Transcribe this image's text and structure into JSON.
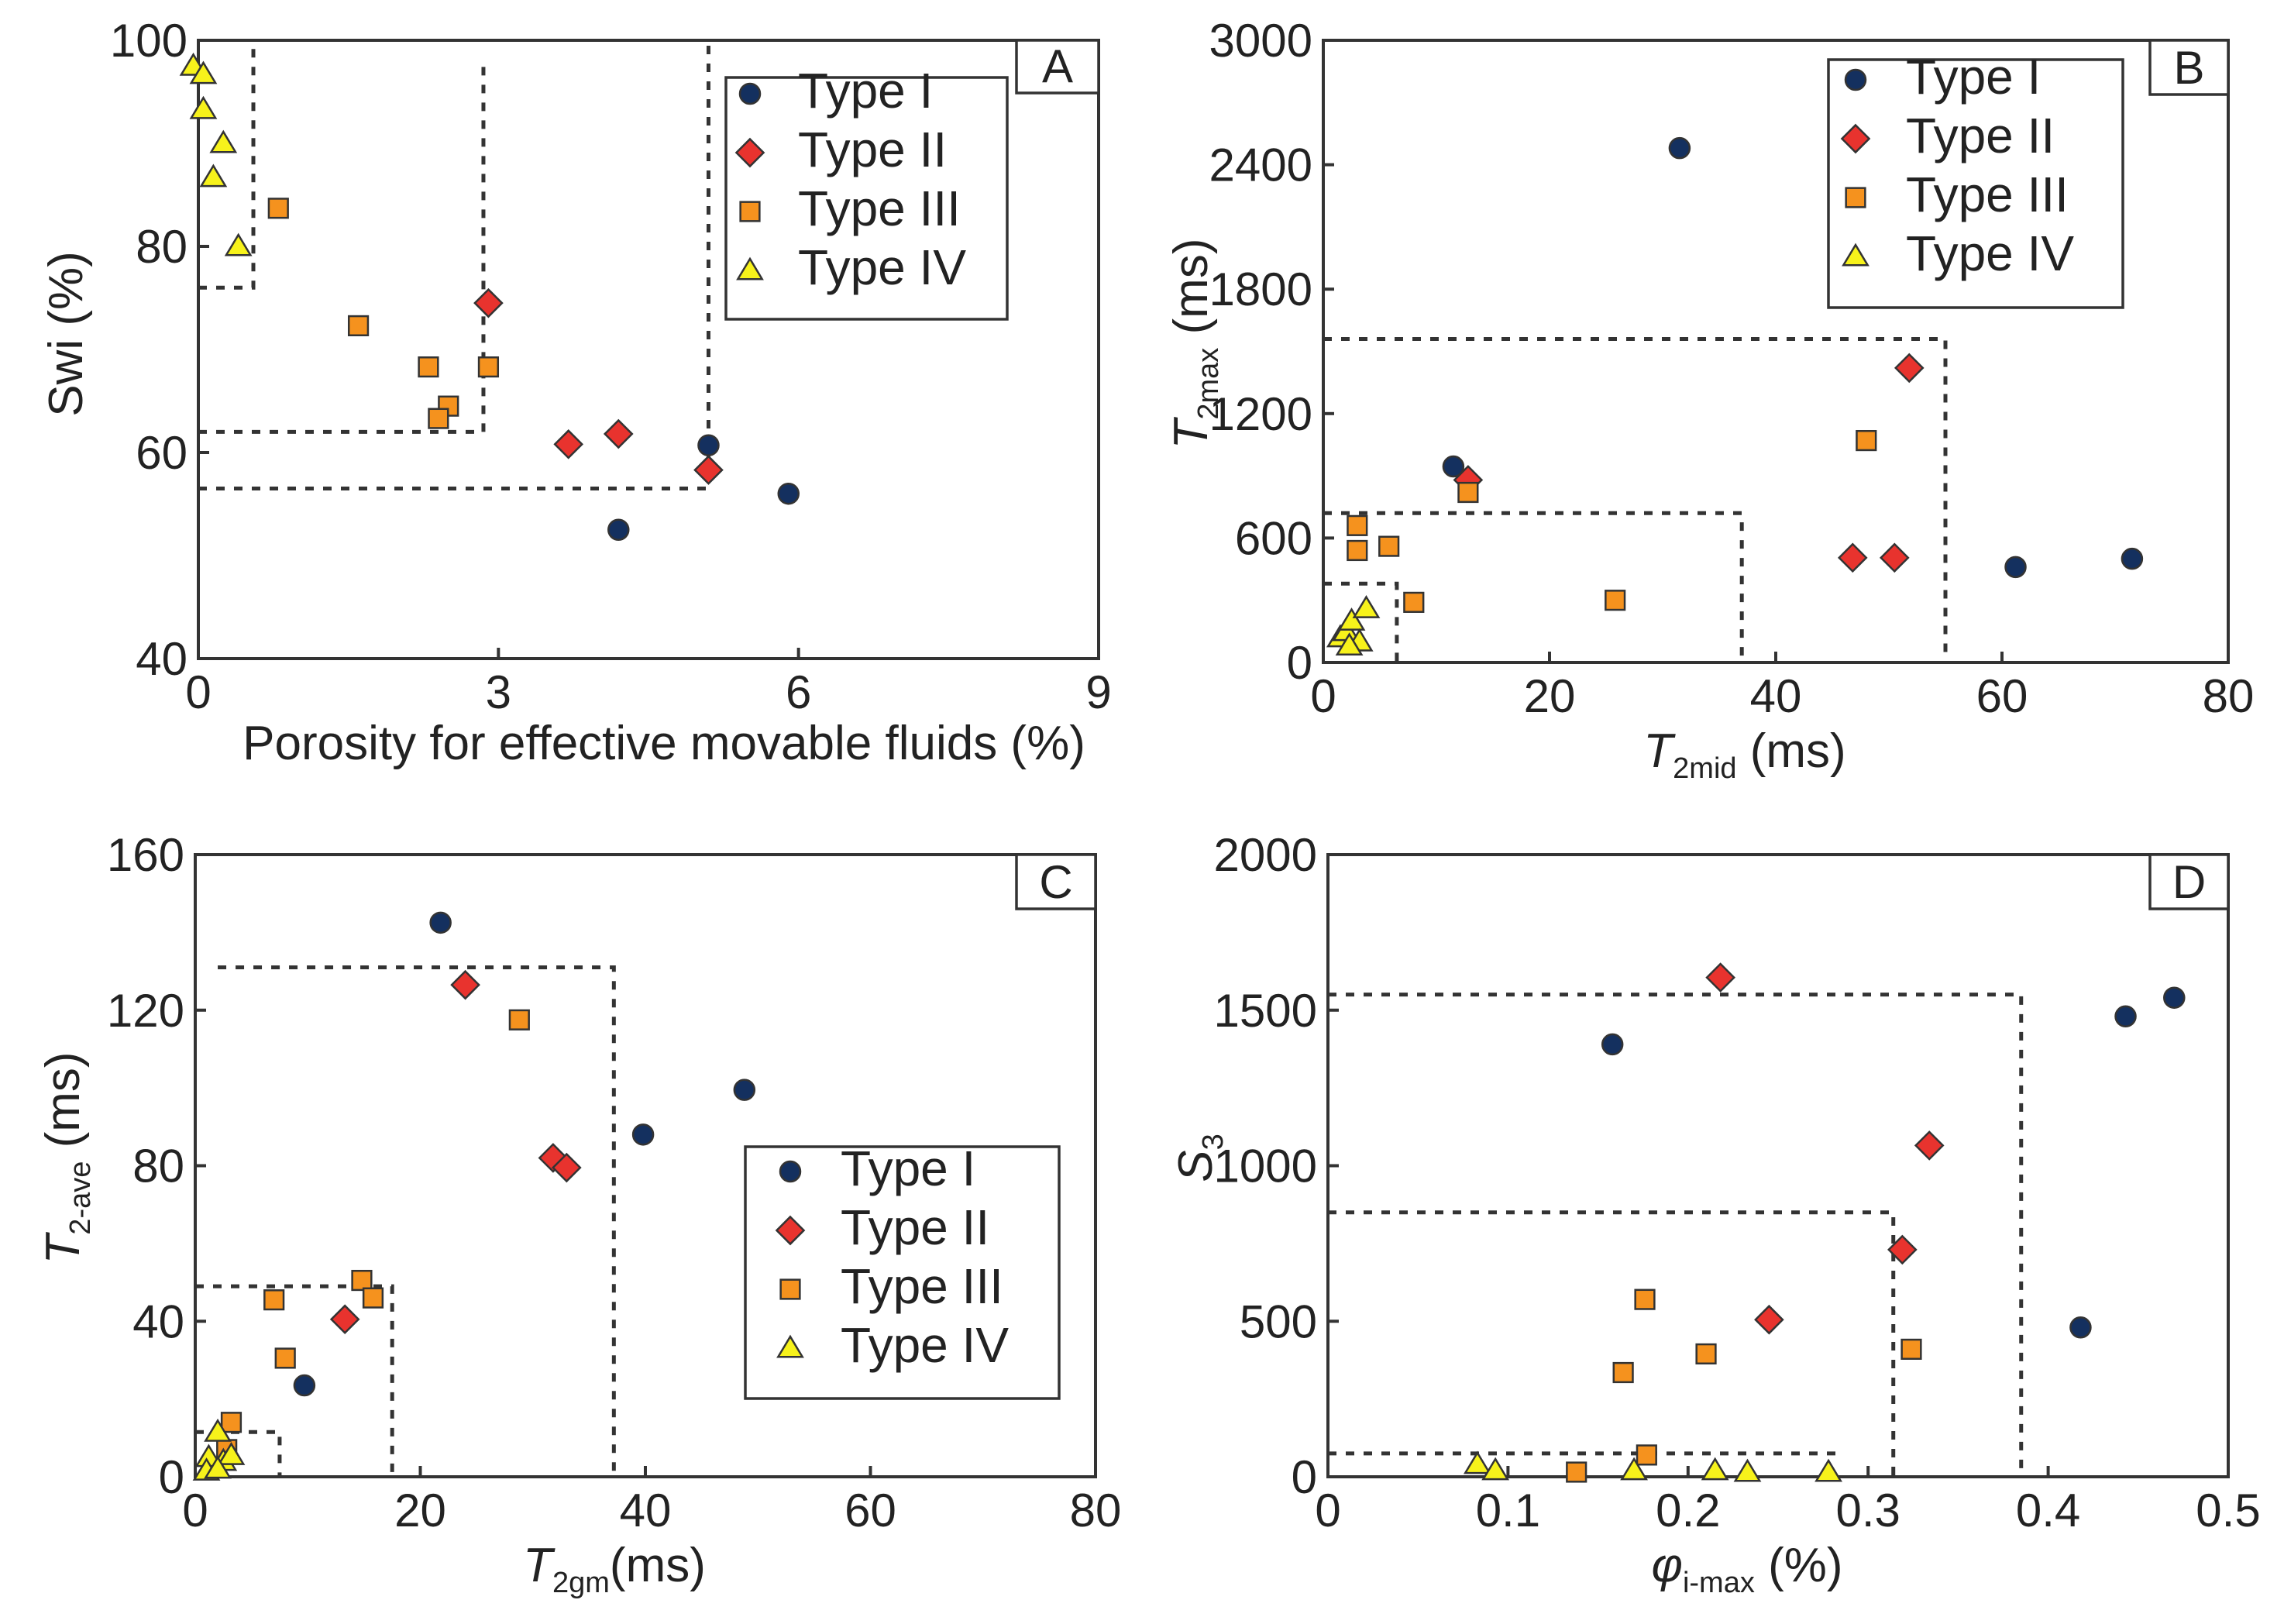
{
  "series_styles": [
    {
      "name": "Type I",
      "marker": "circle",
      "color": "#14305f"
    },
    {
      "name": "Type II",
      "marker": "diamond",
      "color": "#e8332e"
    },
    {
      "name": "Type III",
      "marker": "square",
      "color": "#f5921e"
    },
    {
      "name": "Type IV",
      "marker": "triangle",
      "color": "#f7f21b"
    }
  ],
  "chart_data": [
    {
      "type": "scatter",
      "panel_label": "A",
      "xlabel": "Porosity for effective movable fluids  (%)",
      "ylabel": "Swi (%)",
      "xlim": [
        0,
        9
      ],
      "ylim": [
        40,
        100
      ],
      "xticks": [
        0,
        3,
        6,
        9
      ],
      "yticks": [
        40,
        60,
        80,
        100
      ],
      "legend_position": "top-right",
      "series": [
        {
          "name": "Type I",
          "points": [
            [
              4.2,
              52.5
            ],
            [
              5.1,
              60.7
            ],
            [
              5.9,
              56.0
            ]
          ]
        },
        {
          "name": "Type II",
          "points": [
            [
              2.9,
              74.5
            ],
            [
              3.7,
              60.8
            ],
            [
              4.2,
              61.8
            ],
            [
              5.1,
              58.3
            ]
          ]
        },
        {
          "name": "Type III",
          "points": [
            [
              0.8,
              83.7
            ],
            [
              1.6,
              72.3
            ],
            [
              2.3,
              68.3
            ],
            [
              2.5,
              64.5
            ],
            [
              2.4,
              63.3
            ],
            [
              2.9,
              68.3
            ]
          ]
        },
        {
          "name": "Type IV",
          "points": [
            [
              -0.05,
              97.5
            ],
            [
              0.05,
              96.7
            ],
            [
              0.05,
              93.3
            ],
            [
              0.25,
              90.0
            ],
            [
              0.15,
              86.7
            ],
            [
              0.4,
              80.0
            ]
          ]
        }
      ],
      "boundaries": [
        [
          [
            0,
            76
          ],
          [
            0.55,
            76
          ],
          [
            0.55,
            100
          ]
        ],
        [
          [
            0,
            62
          ],
          [
            2.85,
            62
          ],
          [
            2.85,
            97.5
          ]
        ],
        [
          [
            0,
            56.5
          ],
          [
            5.1,
            56.5
          ],
          [
            5.1,
            100
          ]
        ]
      ]
    },
    {
      "type": "scatter",
      "panel_label": "B",
      "xlabel": "T2mid (ms)",
      "xlabel_main": "T",
      "xlabel_sub": "2mid",
      "xlabel_unit": " (ms)",
      "ylabel": "T2max (ms)",
      "ylabel_main": "T",
      "ylabel_sub": "2max",
      "ylabel_unit": " (ms)",
      "xlim": [
        0,
        80
      ],
      "ylim": [
        0,
        3000
      ],
      "xticks": [
        0,
        20,
        40,
        60,
        80
      ],
      "yticks": [
        0,
        600,
        1200,
        1800,
        2400,
        3000
      ],
      "legend_position": "top-right",
      "series": [
        {
          "name": "Type I",
          "points": [
            [
              31.5,
              2480
            ],
            [
              11.5,
              945
            ],
            [
              61.2,
              460
            ],
            [
              71.5,
              500
            ]
          ]
        },
        {
          "name": "Type II",
          "points": [
            [
              12.8,
              880
            ],
            [
              51.8,
              1420
            ],
            [
              46.8,
              505
            ],
            [
              50.5,
              505
            ]
          ]
        },
        {
          "name": "Type III",
          "points": [
            [
              12.8,
              820
            ],
            [
              3.0,
              660
            ],
            [
              3.0,
              540
            ],
            [
              5.8,
              560
            ],
            [
              8.0,
              290
            ],
            [
              25.8,
              300
            ],
            [
              48.0,
              1070
            ]
          ]
        },
        {
          "name": "Type IV",
          "points": [
            [
              1.5,
              120
            ],
            [
              2.0,
              150
            ],
            [
              2.5,
              200
            ],
            [
              3.2,
              100
            ],
            [
              3.8,
              260
            ],
            [
              2.3,
              80
            ]
          ]
        }
      ],
      "boundaries": [
        [
          [
            0,
            380
          ],
          [
            6.5,
            380
          ],
          [
            6.5,
            0
          ]
        ],
        [
          [
            0,
            720
          ],
          [
            37,
            720
          ],
          [
            37,
            0
          ]
        ],
        [
          [
            0,
            1560
          ],
          [
            55,
            1560
          ],
          [
            55,
            0
          ]
        ]
      ]
    },
    {
      "type": "scatter",
      "panel_label": "C",
      "xlabel": "T2gm(ms)",
      "xlabel_main": "T",
      "xlabel_sub": "2gm",
      "xlabel_unit": "(ms)",
      "ylabel": "T2-ave (ms)",
      "ylabel_main": "T",
      "ylabel_sub": "2-ave",
      "ylabel_unit": " (ms)",
      "xlim": [
        0,
        80
      ],
      "ylim": [
        0,
        160
      ],
      "xticks": [
        0,
        20,
        40,
        60,
        80
      ],
      "yticks": [
        0,
        40,
        80,
        120,
        160
      ],
      "legend_position": "center-right",
      "series": [
        {
          "name": "Type I",
          "points": [
            [
              21.8,
              142.5
            ],
            [
              39.8,
              88.0
            ],
            [
              48.8,
              99.5
            ],
            [
              9.7,
              23.5
            ]
          ]
        },
        {
          "name": "Type II",
          "points": [
            [
              24.0,
              126.5
            ],
            [
              31.8,
              82.0
            ],
            [
              33.0,
              79.5
            ],
            [
              13.3,
              40.5
            ]
          ]
        },
        {
          "name": "Type III",
          "points": [
            [
              28.8,
              117.5
            ],
            [
              14.8,
              50.5
            ],
            [
              15.8,
              46.0
            ],
            [
              7.0,
              45.5
            ],
            [
              8.0,
              30.5
            ],
            [
              3.2,
              14.0
            ],
            [
              2.8,
              7.0
            ]
          ]
        },
        {
          "name": "Type IV",
          "points": [
            [
              2.0,
              11.5
            ],
            [
              1.2,
              5.0
            ],
            [
              2.5,
              4.0
            ],
            [
              3.2,
              5.5
            ],
            [
              1.0,
              1.5
            ],
            [
              2.0,
              2.0
            ]
          ]
        }
      ],
      "boundaries": [
        [
          [
            0,
            11.5
          ],
          [
            7.5,
            11.5
          ],
          [
            7.5,
            0
          ]
        ],
        [
          [
            0,
            49
          ],
          [
            17.5,
            49
          ],
          [
            17.5,
            0
          ]
        ],
        [
          [
            2.0,
            131
          ],
          [
            37.2,
            131
          ],
          [
            37.2,
            0
          ]
        ]
      ]
    },
    {
      "type": "scatter",
      "panel_label": "D",
      "xlabel": "φi-max (%)",
      "xlabel_main": "φ",
      "xlabel_sub": "i-max",
      "xlabel_unit": " (%)",
      "ylabel": "S3",
      "ylabel_main": "S",
      "ylabel_sub": "3",
      "ylabel_unit": "",
      "xlim": [
        0,
        0.5
      ],
      "ylim": [
        0,
        2000
      ],
      "xticks": [
        0,
        0.1,
        0.2,
        0.3,
        0.4,
        0.5
      ],
      "yticks": [
        0,
        500,
        1000,
        1500,
        2000
      ],
      "xtick_labels": [
        "0",
        "0.1",
        "0.2",
        "0.3",
        "0.4",
        "0.5"
      ],
      "legend_position": "none",
      "series": [
        {
          "name": "Type I",
          "points": [
            [
              0.158,
              1390
            ],
            [
              0.418,
              480
            ],
            [
              0.443,
              1480
            ],
            [
              0.47,
              1540
            ]
          ]
        },
        {
          "name": "Type II",
          "points": [
            [
              0.218,
              1605
            ],
            [
              0.334,
              1065
            ],
            [
              0.319,
              730
            ],
            [
              0.245,
              505
            ]
          ]
        },
        {
          "name": "Type III",
          "points": [
            [
              0.176,
              570
            ],
            [
              0.164,
              335
            ],
            [
              0.21,
              395
            ],
            [
              0.324,
              410
            ],
            [
              0.177,
              70
            ],
            [
              0.138,
              15
            ]
          ]
        },
        {
          "name": "Type IV",
          "points": [
            [
              0.083,
              40
            ],
            [
              0.093,
              20
            ],
            [
              0.17,
              20
            ],
            [
              0.215,
              20
            ],
            [
              0.233,
              15
            ],
            [
              0.278,
              15
            ]
          ]
        }
      ],
      "boundaries": [
        [
          [
            0,
            75
          ],
          [
            0.285,
            75
          ]
        ],
        [
          [
            0,
            850
          ],
          [
            0.314,
            850
          ],
          [
            0.314,
            0
          ]
        ],
        [
          [
            0,
            1550
          ],
          [
            0.385,
            1550
          ],
          [
            0.385,
            0
          ]
        ]
      ]
    }
  ]
}
